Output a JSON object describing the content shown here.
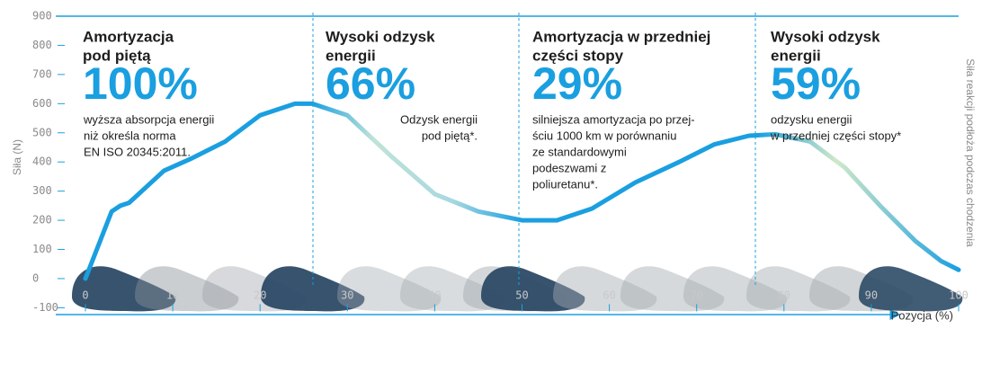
{
  "chart_data": {
    "type": "line",
    "y_label": "Siła (N)",
    "x_label": "Pozycja (%)",
    "side_label": "Siła reakcji podłoża podczas chodzenia",
    "x": [
      0,
      3,
      4,
      5,
      9,
      12,
      16,
      20,
      24,
      26,
      30,
      35,
      40,
      45,
      50,
      54,
      58,
      63,
      68,
      72,
      76,
      79,
      83,
      87,
      91,
      95,
      98,
      100
    ],
    "values": [
      0,
      230,
      250,
      260,
      370,
      410,
      470,
      560,
      600,
      600,
      560,
      420,
      290,
      230,
      200,
      200,
      240,
      330,
      400,
      460,
      490,
      495,
      470,
      380,
      250,
      130,
      60,
      30
    ],
    "color": "#1a9fe0",
    "xlim": [
      0,
      100
    ],
    "ylim": [
      -100,
      900
    ],
    "xticks": [
      0,
      10,
      20,
      30,
      40,
      50,
      60,
      70,
      80,
      90,
      100
    ],
    "yticks": [
      -100,
      0,
      100,
      200,
      300,
      400,
      500,
      600,
      700,
      800,
      900
    ],
    "panels": [
      {
        "heading": [
          "Amortyzacja",
          "pod piętą"
        ],
        "figure": "100%",
        "text": [
          "wyższa absorpcja energii",
          "niż określa norma",
          "EN ISO 20345:2011."
        ]
      },
      {
        "heading": [
          "Wysoki odzysk",
          "energii"
        ],
        "figure": "66%",
        "text": [
          "Odzysk energii",
          "pod piętą*."
        ]
      },
      {
        "heading": [
          "Amortyzacja w przedniej",
          "części stopy"
        ],
        "figure": "29%",
        "text": [
          "silniejsza amortyzacja po przej-",
          "ściu 1000 km w porównaniu",
          "ze standardowymi",
          "podeszwami z",
          "poliuretanu*."
        ]
      },
      {
        "heading": [
          "Wysoki odzysk",
          "energii"
        ],
        "figure": "59%",
        "text": [
          "odzysku energii",
          "w przedniej części stopy*"
        ]
      }
    ]
  }
}
